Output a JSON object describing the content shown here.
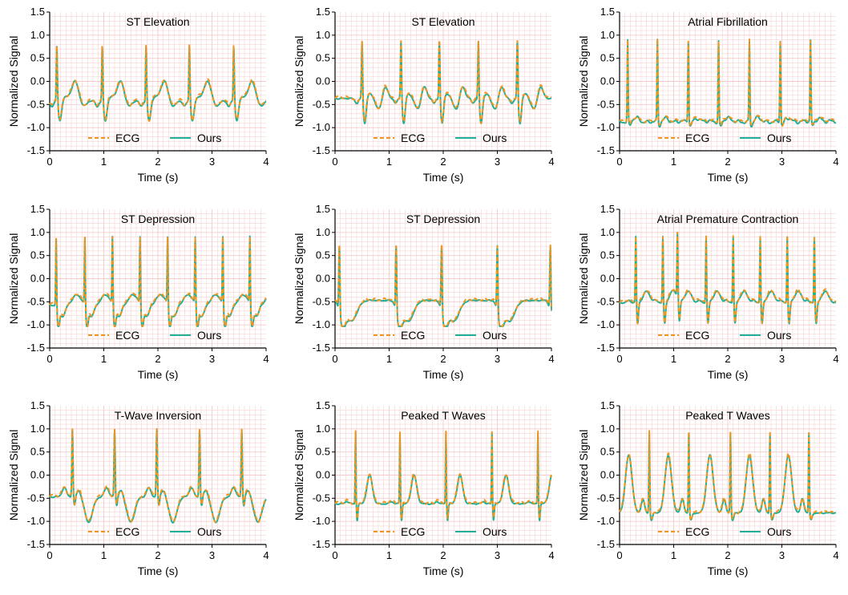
{
  "colors": {
    "ecg": "#f0961e",
    "ours": "#1fb09a",
    "grid": "#f6caca",
    "axis": "#000000"
  },
  "chart_data": [
    {
      "type": "line",
      "title": "ST Elevation",
      "xlabel": "Time (s)",
      "ylabel": "Normalized Signal",
      "xlim": [
        0,
        4
      ],
      "ylim": [
        -1.5,
        1.5
      ],
      "xticks": [
        "0",
        "1",
        "2",
        "3",
        "4"
      ],
      "yticks": [
        "-1.5",
        "-1.0",
        "-0.5",
        "0.0",
        "0.5",
        "1.0",
        "1.5"
      ],
      "legend": [
        "ECG",
        "Ours"
      ],
      "pattern": "stelev",
      "beat_times": [
        0.13,
        0.97,
        1.78,
        2.58,
        3.4
      ],
      "baseline": -0.4
    },
    {
      "type": "line",
      "title": "ST Elevation",
      "xlabel": "Time (s)",
      "ylabel": "Normalized Signal",
      "xlim": [
        0,
        4
      ],
      "ylim": [
        -1.5,
        1.5
      ],
      "xticks": [
        "0",
        "1",
        "2",
        "3",
        "4"
      ],
      "yticks": [
        "-1.5",
        "-1.0",
        "-0.5",
        "0.0",
        "0.5",
        "1.0",
        "1.5"
      ],
      "legend": [
        "ECG",
        "Ours"
      ],
      "pattern": "stelev2",
      "beat_times": [
        0.5,
        1.22,
        1.93,
        2.65,
        3.37
      ],
      "baseline": -0.35
    },
    {
      "type": "line",
      "title": "Atrial Fibrillation",
      "xlabel": "Time (s)",
      "ylabel": "Normalized Signal",
      "xlim": [
        0,
        4
      ],
      "ylim": [
        -1.5,
        1.5
      ],
      "xticks": [
        "0",
        "1",
        "2",
        "3",
        "4"
      ],
      "yticks": [
        "-1.5",
        "-1.0",
        "-0.5",
        "0.0",
        "0.5",
        "1.0",
        "1.5"
      ],
      "legend": [
        "ECG",
        "Ours"
      ],
      "pattern": "afib",
      "beat_times": [
        0.15,
        0.7,
        1.27,
        1.83,
        2.4,
        2.97,
        3.53
      ],
      "baseline": -0.85
    },
    {
      "type": "line",
      "title": "ST Depression",
      "xlabel": "Time (s)",
      "ylabel": "Normalized Signal",
      "xlim": [
        0,
        4
      ],
      "ylim": [
        -1.5,
        1.5
      ],
      "xticks": [
        "0",
        "1",
        "2",
        "3",
        "4"
      ],
      "yticks": [
        "-1.5",
        "-1.0",
        "-0.5",
        "0.0",
        "0.5",
        "1.0",
        "1.5"
      ],
      "legend": [
        "ECG",
        "Ours"
      ],
      "pattern": "stdep",
      "beat_times": [
        0.12,
        0.65,
        1.16,
        1.67,
        2.18,
        2.69,
        3.2,
        3.7
      ],
      "baseline": -0.55
    },
    {
      "type": "line",
      "title": "ST Depression",
      "xlabel": "Time (s)",
      "ylabel": "Normalized Signal",
      "xlim": [
        0,
        4
      ],
      "ylim": [
        -1.5,
        1.5
      ],
      "xticks": [
        "0",
        "1",
        "2",
        "3",
        "4"
      ],
      "yticks": [
        "-1.5",
        "-1.0",
        "-0.5",
        "0.0",
        "0.5",
        "1.0",
        "1.5"
      ],
      "legend": [
        "ECG",
        "Ours"
      ],
      "pattern": "stdep2",
      "beat_times": [
        0.08,
        1.13,
        1.97,
        3.0,
        3.98
      ],
      "baseline": -0.45
    },
    {
      "type": "line",
      "title": "Atrial Premature Contraction",
      "xlabel": "Time (s)",
      "ylabel": "Normalized Signal",
      "xlim": [
        0,
        4
      ],
      "ylim": [
        -1.5,
        1.5
      ],
      "xticks": [
        "0",
        "1",
        "2",
        "3",
        "4"
      ],
      "yticks": [
        "-1.5",
        "-1.0",
        "-0.5",
        "0.0",
        "0.5",
        "1.0",
        "1.5"
      ],
      "legend": [
        "ECG",
        "Ours"
      ],
      "pattern": "apc",
      "beat_times": [
        0.3,
        0.8,
        1.07,
        1.6,
        2.1,
        2.6,
        3.1,
        3.6
      ],
      "baseline": -0.5
    },
    {
      "type": "line",
      "title": "T-Wave Inversion",
      "xlabel": "Time (s)",
      "ylabel": "Normalized Signal",
      "xlim": [
        0,
        4
      ],
      "ylim": [
        -1.5,
        1.5
      ],
      "xticks": [
        "0",
        "1",
        "2",
        "3",
        "4"
      ],
      "yticks": [
        "-1.5",
        "-1.0",
        "-0.5",
        "0.0",
        "0.5",
        "1.0",
        "1.5"
      ],
      "legend": [
        "ECG",
        "Ours"
      ],
      "pattern": "twi",
      "beat_times": [
        0.42,
        1.2,
        1.98,
        2.77,
        3.55
      ],
      "baseline": -0.45
    },
    {
      "type": "line",
      "title": "Peaked T Waves",
      "xlabel": "Time (s)",
      "ylabel": "Normalized Signal",
      "xlim": [
        0,
        4
      ],
      "ylim": [
        -1.5,
        1.5
      ],
      "xticks": [
        "0",
        "1",
        "2",
        "3",
        "4"
      ],
      "yticks": [
        "-1.5",
        "-1.0",
        "-0.5",
        "0.0",
        "0.5",
        "1.0",
        "1.5"
      ],
      "legend": [
        "ECG",
        "Ours"
      ],
      "pattern": "peakedT",
      "beat_times": [
        0.38,
        1.2,
        2.05,
        2.9,
        3.75
      ],
      "baseline": -0.6
    },
    {
      "type": "line",
      "title": "Peaked T Waves",
      "xlabel": "Time (s)",
      "ylabel": "Normalized Signal",
      "xlim": [
        0,
        4
      ],
      "ylim": [
        -1.5,
        1.5
      ],
      "xticks": [
        "0",
        "1",
        "2",
        "3",
        "4"
      ],
      "yticks": [
        "-1.5",
        "-1.0",
        "-0.5",
        "0.0",
        "0.5",
        "1.0",
        "1.5"
      ],
      "legend": [
        "ECG",
        "Ours"
      ],
      "pattern": "peakedT2",
      "beat_times": [
        0.55,
        1.28,
        2.05,
        2.78,
        3.5
      ],
      "baseline": -0.8
    }
  ]
}
